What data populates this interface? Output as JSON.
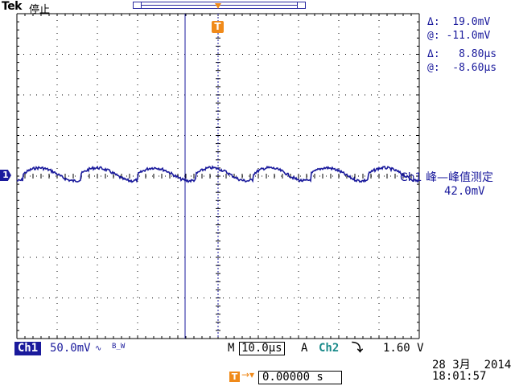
{
  "header": {
    "brand": "Tek",
    "run_state": "停止"
  },
  "readouts": {
    "voltage_delta": "Δ:  19.0mV",
    "voltage_at": "@: -11.0mV",
    "time_delta": "Δ:   8.80µs",
    "time_at": "@:  -8.60µs"
  },
  "markers": {
    "trigger_marker": "T",
    "ch1_ground": "1"
  },
  "measurement": {
    "label": "Ch1 峰—峰值测定",
    "value": "42.0mV"
  },
  "status": {
    "ch1_tag": "Ch1",
    "ch1_scale": "50.0mV",
    "ch1_coupling": "∿",
    "ch1_bw": "B_W",
    "m_label": "M",
    "timebase": "10.0µs",
    "a_label": "A",
    "trigger_source": "Ch2",
    "trigger_slope": "⤵",
    "trigger_level": "1.60 V"
  },
  "datetime": {
    "date": "28 3月  2014",
    "time": "18:01:57"
  },
  "trigger_position": {
    "icon": "T",
    "arrow": "→▾",
    "value": "0.00000 s"
  },
  "colors": {
    "trace": "#1a1a9c",
    "graticule": "#000000",
    "trigger": "#f08a1a",
    "ch2": "#1a8a8a"
  },
  "waveform": {
    "channel": "Ch1",
    "shape": "sawtooth-like periodic",
    "peak_to_peak_mV": 42.0,
    "periods_on_screen": 7,
    "noise": "moderate"
  }
}
